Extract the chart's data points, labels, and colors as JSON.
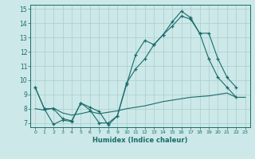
{
  "xlabel": "Humidex (Indice chaleur)",
  "bg_color": "#cce8e8",
  "grid_color": "#aacece",
  "line_color": "#1a6b6b",
  "xlim": [
    -0.5,
    23.5
  ],
  "ylim": [
    6.7,
    15.3
  ],
  "yticks": [
    7,
    8,
    9,
    10,
    11,
    12,
    13,
    14,
    15
  ],
  "xticks": [
    0,
    1,
    2,
    3,
    4,
    5,
    6,
    7,
    8,
    9,
    10,
    11,
    12,
    13,
    14,
    15,
    16,
    17,
    18,
    19,
    20,
    21,
    22,
    23
  ],
  "line1_x": [
    0,
    1,
    2,
    3,
    4,
    5,
    6,
    7,
    8,
    9,
    10,
    11,
    12,
    13,
    14,
    15,
    16,
    17,
    18,
    19,
    20,
    21,
    22
  ],
  "line1_y": [
    9.5,
    8.0,
    6.9,
    7.2,
    7.1,
    8.4,
    8.1,
    7.8,
    6.85,
    7.5,
    9.7,
    11.8,
    12.8,
    12.5,
    13.2,
    14.1,
    14.85,
    14.4,
    13.3,
    11.5,
    10.2,
    9.5,
    8.8
  ],
  "line2_x": [
    0,
    1,
    2,
    3,
    4,
    5,
    6,
    7,
    8,
    9,
    10,
    11,
    12,
    13,
    14,
    15,
    16,
    17,
    18,
    19,
    20,
    21,
    22
  ],
  "line2_y": [
    9.5,
    8.0,
    8.0,
    7.3,
    7.15,
    8.4,
    7.9,
    7.0,
    7.0,
    7.5,
    9.8,
    10.8,
    11.5,
    12.5,
    13.2,
    13.8,
    14.5,
    14.3,
    13.3,
    13.3,
    11.5,
    10.2,
    9.5
  ],
  "line3_x": [
    0,
    1,
    2,
    3,
    4,
    5,
    6,
    7,
    8,
    9,
    10,
    11,
    12,
    13,
    14,
    15,
    16,
    17,
    18,
    19,
    20,
    21,
    22,
    23
  ],
  "line3_y": [
    8.0,
    7.9,
    8.05,
    7.7,
    7.55,
    7.65,
    7.8,
    7.65,
    7.75,
    7.85,
    8.0,
    8.1,
    8.2,
    8.35,
    8.5,
    8.6,
    8.7,
    8.8,
    8.85,
    8.9,
    9.0,
    9.1,
    8.8,
    8.8
  ]
}
